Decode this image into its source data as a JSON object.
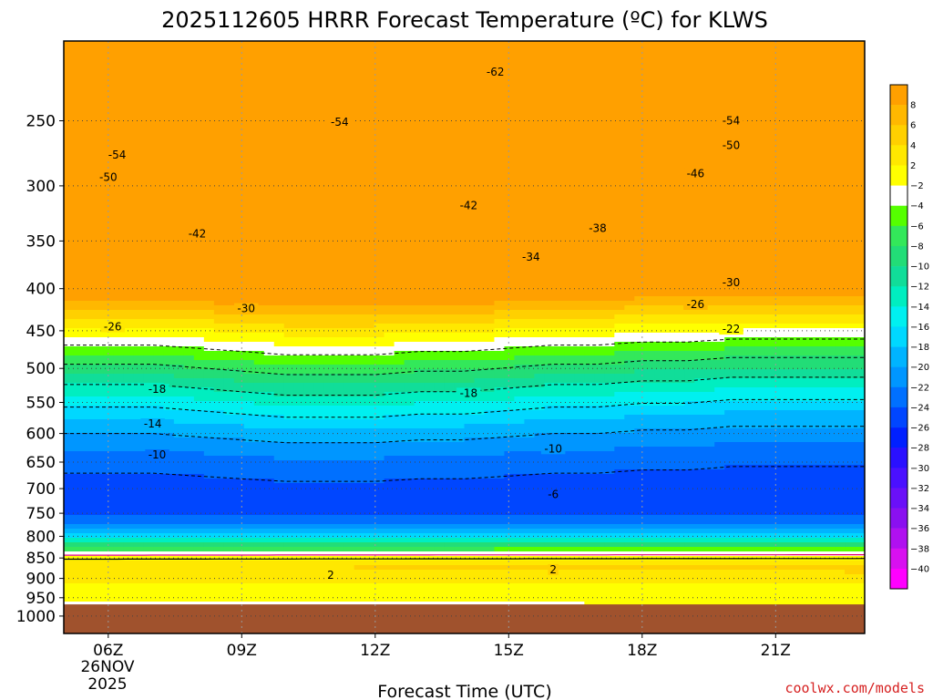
{
  "chart_data": {
    "type": "heatmap",
    "title": "2025112605 HRRR Forecast Temperature (ºC) for KLWS",
    "xlabel": "Forecast Time (UTC)",
    "ylabel": "",
    "x_ticks": [
      "06Z",
      "09Z",
      "12Z",
      "15Z",
      "18Z",
      "21Z"
    ],
    "x_tick_hours": [
      6,
      9,
      12,
      15,
      18,
      21
    ],
    "x_range_hours": [
      5,
      23
    ],
    "date_label": [
      "26NOV",
      "2025"
    ],
    "y_ticks": [
      250,
      300,
      350,
      400,
      450,
      500,
      550,
      600,
      650,
      700,
      750,
      800,
      850,
      900,
      950,
      1000
    ],
    "y_range_hpa": [
      1050,
      200
    ],
    "y_scale": "log",
    "ground_color": "#a0522d",
    "colorbar": {
      "levels": [
        8,
        6,
        4,
        2,
        -2,
        -4,
        -6,
        -8,
        -10,
        -12,
        -14,
        -16,
        -18,
        -20,
        -22,
        -24,
        -26,
        -28,
        -30,
        -32,
        -34,
        -36,
        -38,
        -40
      ],
      "colors": [
        "#ffa000",
        "#ffb800",
        "#ffd000",
        "#ffe800",
        "#ffff00",
        "#ffffff",
        "#55ff00",
        "#33e85a",
        "#22dd77",
        "#11dd99",
        "#00eec0",
        "#00f0f0",
        "#00d8ff",
        "#00b4ff",
        "#0096ff",
        "#0070ff",
        "#0046ff",
        "#0020ff",
        "#2a10ff",
        "#4a10ff",
        "#6a10f8",
        "#8a10f0",
        "#b010f0",
        "#d810f0",
        "#ff00ff"
      ]
    },
    "contour_labels": [
      {
        "t": 14.7,
        "p": 218,
        "v": "-62"
      },
      {
        "t": 11.2,
        "p": 251,
        "v": "-54"
      },
      {
        "t": 6.2,
        "p": 275,
        "v": "-54"
      },
      {
        "t": 6.0,
        "p": 293,
        "v": "-50"
      },
      {
        "t": 20.0,
        "p": 250,
        "v": "-54"
      },
      {
        "t": 20.0,
        "p": 268,
        "v": "-50"
      },
      {
        "t": 19.2,
        "p": 290,
        "v": "-46"
      },
      {
        "t": 14.1,
        "p": 317,
        "v": "-42"
      },
      {
        "t": 8.0,
        "p": 343,
        "v": "-42"
      },
      {
        "t": 17.0,
        "p": 338,
        "v": "-38"
      },
      {
        "t": 15.5,
        "p": 366,
        "v": "-34"
      },
      {
        "t": 20.0,
        "p": 393,
        "v": "-30"
      },
      {
        "t": 9.1,
        "p": 423,
        "v": "-30"
      },
      {
        "t": 6.1,
        "p": 445,
        "v": "-26"
      },
      {
        "t": 19.2,
        "p": 418,
        "v": "-26"
      },
      {
        "t": 20.0,
        "p": 448,
        "v": "-22"
      },
      {
        "t": 7.1,
        "p": 530,
        "v": "-18"
      },
      {
        "t": 14.1,
        "p": 536,
        "v": "-18"
      },
      {
        "t": 7.0,
        "p": 584,
        "v": "-14"
      },
      {
        "t": 7.1,
        "p": 637,
        "v": "-10"
      },
      {
        "t": 16.0,
        "p": 626,
        "v": "-10"
      },
      {
        "t": 16.0,
        "p": 712,
        "v": "-6"
      },
      {
        "t": 11.0,
        "p": 892,
        "v": "2"
      },
      {
        "t": 16.0,
        "p": 878,
        "v": "2"
      }
    ]
  },
  "credit": "coolwx.com/models"
}
